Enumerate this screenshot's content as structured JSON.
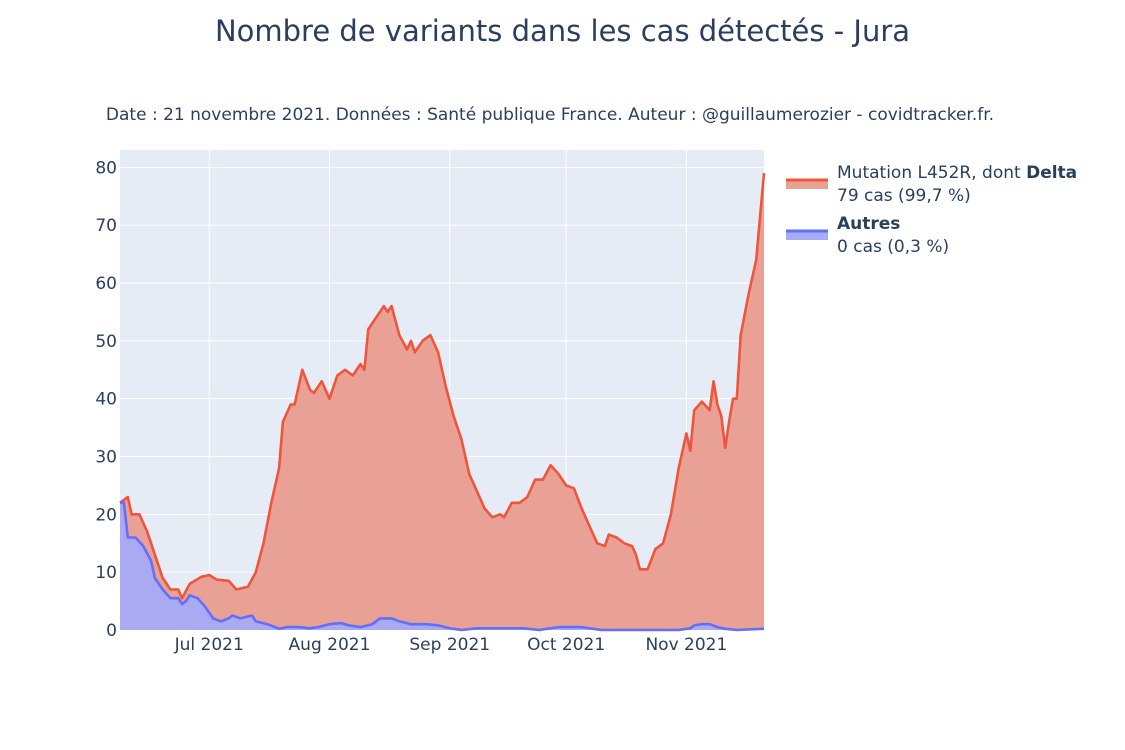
{
  "chart_data": {
    "type": "area",
    "title": "Nombre de variants dans les cas détectés - Jura",
    "subtitle": "Date : 21 novembre 2021. Données : Santé publique France. Auteur : @guillaumerozier - covidtracker.fr.",
    "xlabel": "",
    "ylabel": "",
    "x_start": "2021-06-08",
    "x_end": "2021-11-21",
    "x_ticks": [
      {
        "date": "2021-07-01",
        "label": "Jul 2021"
      },
      {
        "date": "2021-08-01",
        "label": "Aug 2021"
      },
      {
        "date": "2021-09-01",
        "label": "Sep 2021"
      },
      {
        "date": "2021-10-01",
        "label": "Oct 2021"
      },
      {
        "date": "2021-11-01",
        "label": "Nov 2021"
      }
    ],
    "ylim": [
      0,
      83
    ],
    "y_ticks": [
      0,
      10,
      20,
      30,
      40,
      50,
      60,
      70,
      80
    ],
    "grid": true,
    "legend_position": "right",
    "series": [
      {
        "name": "Mutation L452R, dont Delta",
        "name_plain": "Mutation L452R, dont ",
        "name_bold": "Delta",
        "legend_value": "79 cas (99,7 %)",
        "color": "#ef553b",
        "fill": "#e9a196",
        "points": [
          [
            "2021-06-08",
            22
          ],
          [
            "2021-06-10",
            23
          ],
          [
            "2021-06-11",
            20
          ],
          [
            "2021-06-13",
            20
          ],
          [
            "2021-06-15",
            17
          ],
          [
            "2021-06-17",
            13
          ],
          [
            "2021-06-19",
            9
          ],
          [
            "2021-06-21",
            7
          ],
          [
            "2021-06-23",
            7
          ],
          [
            "2021-06-24",
            5.5
          ],
          [
            "2021-06-26",
            8
          ],
          [
            "2021-06-29",
            9.2
          ],
          [
            "2021-07-01",
            9.5
          ],
          [
            "2021-07-03",
            8.7
          ],
          [
            "2021-07-06",
            8.5
          ],
          [
            "2021-07-08",
            7
          ],
          [
            "2021-07-11",
            7.5
          ],
          [
            "2021-07-13",
            10
          ],
          [
            "2021-07-15",
            15
          ],
          [
            "2021-07-17",
            22
          ],
          [
            "2021-07-19",
            28
          ],
          [
            "2021-07-20",
            36
          ],
          [
            "2021-07-22",
            39
          ],
          [
            "2021-07-23",
            39
          ],
          [
            "2021-07-25",
            45
          ],
          [
            "2021-07-27",
            41.5
          ],
          [
            "2021-07-28",
            41
          ],
          [
            "2021-07-30",
            43
          ],
          [
            "2021-08-01",
            40
          ],
          [
            "2021-08-03",
            44
          ],
          [
            "2021-08-05",
            45
          ],
          [
            "2021-08-07",
            44
          ],
          [
            "2021-08-09",
            46
          ],
          [
            "2021-08-10",
            45
          ],
          [
            "2021-08-11",
            52
          ],
          [
            "2021-08-13",
            54
          ],
          [
            "2021-08-15",
            56
          ],
          [
            "2021-08-16",
            55
          ],
          [
            "2021-08-17",
            56
          ],
          [
            "2021-08-19",
            51
          ],
          [
            "2021-08-21",
            48.5
          ],
          [
            "2021-08-22",
            50
          ],
          [
            "2021-08-23",
            48
          ],
          [
            "2021-08-25",
            50
          ],
          [
            "2021-08-27",
            51
          ],
          [
            "2021-08-29",
            48
          ],
          [
            "2021-08-31",
            42
          ],
          [
            "2021-09-02",
            37
          ],
          [
            "2021-09-04",
            33
          ],
          [
            "2021-09-06",
            27
          ],
          [
            "2021-09-08",
            24
          ],
          [
            "2021-09-10",
            21
          ],
          [
            "2021-09-12",
            19.5
          ],
          [
            "2021-09-14",
            20
          ],
          [
            "2021-09-15",
            19.5
          ],
          [
            "2021-09-17",
            22
          ],
          [
            "2021-09-19",
            22
          ],
          [
            "2021-09-21",
            23
          ],
          [
            "2021-09-23",
            26
          ],
          [
            "2021-09-25",
            26
          ],
          [
            "2021-09-27",
            28.5
          ],
          [
            "2021-09-29",
            27
          ],
          [
            "2021-10-01",
            25
          ],
          [
            "2021-10-03",
            24.5
          ],
          [
            "2021-10-05",
            21
          ],
          [
            "2021-10-07",
            18
          ],
          [
            "2021-10-09",
            15
          ],
          [
            "2021-10-11",
            14.5
          ],
          [
            "2021-10-12",
            16.5
          ],
          [
            "2021-10-14",
            16
          ],
          [
            "2021-10-16",
            15
          ],
          [
            "2021-10-18",
            14.5
          ],
          [
            "2021-10-19",
            13
          ],
          [
            "2021-10-20",
            10.5
          ],
          [
            "2021-10-22",
            10.5
          ],
          [
            "2021-10-24",
            14
          ],
          [
            "2021-10-26",
            15
          ],
          [
            "2021-10-28",
            20
          ],
          [
            "2021-10-30",
            28
          ],
          [
            "2021-11-01",
            34
          ],
          [
            "2021-11-02",
            31
          ],
          [
            "2021-11-03",
            38
          ],
          [
            "2021-11-05",
            39.5
          ],
          [
            "2021-11-07",
            38
          ],
          [
            "2021-11-08",
            43
          ],
          [
            "2021-11-09",
            39
          ],
          [
            "2021-11-10",
            37
          ],
          [
            "2021-11-11",
            31.5
          ],
          [
            "2021-11-12",
            36
          ],
          [
            "2021-11-13",
            40
          ],
          [
            "2021-11-14",
            40
          ],
          [
            "2021-11-15",
            51
          ],
          [
            "2021-11-17",
            58
          ],
          [
            "2021-11-19",
            64
          ],
          [
            "2021-11-21",
            79
          ]
        ]
      },
      {
        "name": "Autres",
        "name_plain": "",
        "name_bold": "Autres",
        "legend_value": "0 cas (0,3 %)",
        "color": "#636efa",
        "fill": "#a5abf5",
        "points": [
          [
            "2021-06-08",
            22
          ],
          [
            "2021-06-09",
            22
          ],
          [
            "2021-06-10",
            16
          ],
          [
            "2021-06-12",
            16
          ],
          [
            "2021-06-14",
            14.5
          ],
          [
            "2021-06-16",
            12
          ],
          [
            "2021-06-17",
            9
          ],
          [
            "2021-06-19",
            7
          ],
          [
            "2021-06-21",
            5.5
          ],
          [
            "2021-06-23",
            5.5
          ],
          [
            "2021-06-24",
            4.5
          ],
          [
            "2021-06-25",
            5
          ],
          [
            "2021-06-26",
            6
          ],
          [
            "2021-06-28",
            5.5
          ],
          [
            "2021-06-30",
            4
          ],
          [
            "2021-07-01",
            3
          ],
          [
            "2021-07-02",
            2
          ],
          [
            "2021-07-04",
            1.5
          ],
          [
            "2021-07-06",
            2
          ],
          [
            "2021-07-07",
            2.5
          ],
          [
            "2021-07-09",
            2
          ],
          [
            "2021-07-12",
            2.5
          ],
          [
            "2021-07-13",
            1.5
          ],
          [
            "2021-07-16",
            1
          ],
          [
            "2021-07-18",
            0.5
          ],
          [
            "2021-07-19",
            0.2
          ],
          [
            "2021-07-21",
            0.5
          ],
          [
            "2021-07-24",
            0.5
          ],
          [
            "2021-07-27",
            0.3
          ],
          [
            "2021-07-29",
            0.5
          ],
          [
            "2021-08-01",
            1
          ],
          [
            "2021-08-04",
            1.2
          ],
          [
            "2021-08-06",
            0.8
          ],
          [
            "2021-08-09",
            0.5
          ],
          [
            "2021-08-12",
            1
          ],
          [
            "2021-08-14",
            2
          ],
          [
            "2021-08-17",
            2
          ],
          [
            "2021-08-19",
            1.5
          ],
          [
            "2021-08-22",
            1
          ],
          [
            "2021-08-26",
            1
          ],
          [
            "2021-08-29",
            0.8
          ],
          [
            "2021-09-01",
            0.3
          ],
          [
            "2021-09-04",
            0
          ],
          [
            "2021-09-08",
            0.3
          ],
          [
            "2021-09-12",
            0.3
          ],
          [
            "2021-09-16",
            0.3
          ],
          [
            "2021-09-20",
            0.3
          ],
          [
            "2021-09-24",
            0
          ],
          [
            "2021-09-29",
            0.5
          ],
          [
            "2021-10-05",
            0.5
          ],
          [
            "2021-10-10",
            0
          ],
          [
            "2021-10-20",
            0
          ],
          [
            "2021-10-30",
            0
          ],
          [
            "2021-11-02",
            0.3
          ],
          [
            "2021-11-03",
            0.8
          ],
          [
            "2021-11-05",
            1
          ],
          [
            "2021-11-07",
            1
          ],
          [
            "2021-11-09",
            0.5
          ],
          [
            "2021-11-11",
            0.2
          ],
          [
            "2021-11-14",
            0
          ],
          [
            "2021-11-21",
            0.2
          ]
        ]
      }
    ]
  }
}
